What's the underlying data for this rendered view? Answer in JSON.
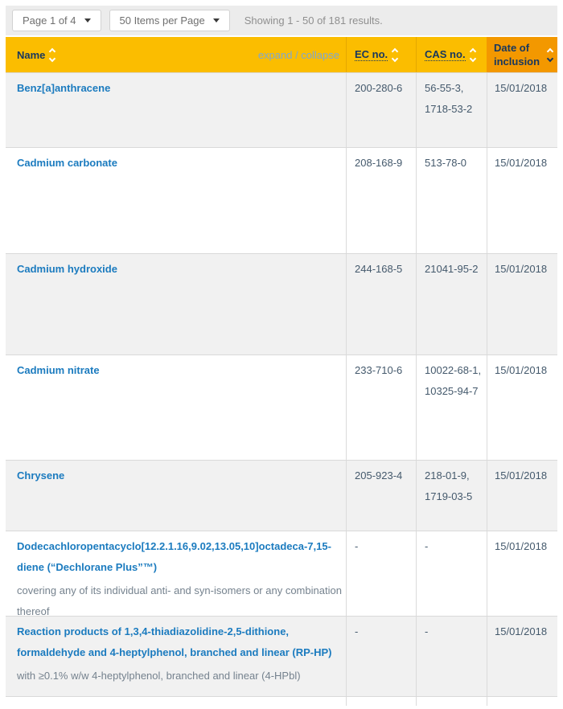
{
  "pagination": {
    "page_selector": "Page 1 of 4",
    "items_per_page": "50 Items per Page",
    "results_summary": "Showing 1 - 50 of 181 results."
  },
  "table": {
    "headers": {
      "name": "Name",
      "expand_collapse": "expand / collapse",
      "ec": "EC no.",
      "cas": "CAS no.",
      "date_line1": "Date of",
      "date_line2": "inclusion"
    },
    "rows": [
      {
        "name": "Benz[a]anthracene",
        "note": "",
        "ec": "200-280-6",
        "cas": "56-55-3, 1718-53-2",
        "date": "15/01/2018"
      },
      {
        "name": "Cadmium carbonate",
        "note": "",
        "ec": "208-168-9",
        "cas": "513-78-0",
        "date": "15/01/2018"
      },
      {
        "name": "Cadmium hydroxide",
        "note": "",
        "ec": "244-168-5",
        "cas": "21041-95-2",
        "date": "15/01/2018"
      },
      {
        "name": "Cadmium nitrate",
        "note": "",
        "ec": "233-710-6",
        "cas": "10022-68-1, 10325-94-7",
        "date": "15/01/2018"
      },
      {
        "name": "Chrysene",
        "note": "",
        "ec": "205-923-4",
        "cas": "218-01-9, 1719-03-5",
        "date": "15/01/2018"
      },
      {
        "name": "Dodecachloropentacyclo[12.2.1.16,9.02,13.05,10]octadeca-7,15-diene (“Dechlorane Plus”™)",
        "note": "covering any of its individual anti- and syn-isomers or any combination thereof",
        "ec": "-",
        "cas": "-",
        "date": "15/01/2018"
      },
      {
        "name": "Reaction products of 1,3,4-thiadiazolidine-2,5-dithione, formaldehyde and 4-heptylphenol, branched and linear (RP-HP)",
        "note": "with ≥0.1% w/w 4-heptylphenol, branched and linear (4-HPbl)",
        "ec": "-",
        "cas": "-",
        "date": "15/01/2018"
      }
    ]
  },
  "colors": {
    "header_background": "#fbbd00",
    "sorted_column_background": "#f39800",
    "header_text": "#17375e",
    "link_blue": "#1b7bbf",
    "body_text": "#44596c",
    "note_text": "#75828e",
    "row_alt_background": "#f1f1f1",
    "topbar_background": "#ececec"
  }
}
